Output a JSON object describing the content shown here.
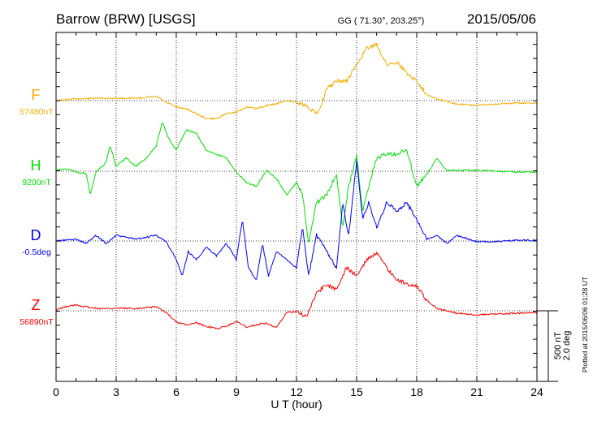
{
  "chart_data": {
    "type": "line",
    "title": "Barrow (BRW)  [USGS]",
    "subtitle": "GG ( 71.30°, 203.25°)",
    "date": "2015/05/06",
    "xlabel": "U T (hour)",
    "xlim": [
      0,
      24
    ],
    "xticks": [
      "0",
      "3",
      "6",
      "9",
      "12",
      "15",
      "18",
      "21",
      "24"
    ],
    "grid": true,
    "scale_bar": {
      "nT": "500 nT",
      "deg": "2.0 deg"
    },
    "plotted_at": "Plotted at 2015/06/06 01:28 UT",
    "series": [
      {
        "name": "F",
        "baseline_label": "57480nT",
        "baseline": 57480,
        "unit": "nT",
        "color": "#f7ac00",
        "x": [
          0,
          1,
          2,
          3,
          4,
          5,
          5.5,
          6,
          6.5,
          7,
          7.5,
          8,
          8.5,
          9,
          9.5,
          10,
          10.5,
          11,
          11.5,
          12,
          12.5,
          13,
          13.3,
          13.5,
          14,
          14.5,
          15,
          15.5,
          16,
          16.5,
          17,
          17.5,
          18,
          18.5,
          19,
          20,
          21,
          22,
          23,
          24
        ],
        "delta": [
          0,
          12,
          17,
          17,
          17,
          29,
          -12,
          -46,
          -58,
          -93,
          -128,
          -128,
          -93,
          -81,
          -46,
          -58,
          -35,
          -23,
          0,
          -12,
          -35,
          -93,
          -6,
          81,
          139,
          139,
          255,
          371,
          400,
          255,
          278,
          197,
          139,
          46,
          12,
          -23,
          -35,
          -23,
          -17,
          -17
        ]
      },
      {
        "name": "H",
        "baseline_label": "9200nT",
        "baseline": 9200,
        "unit": "nT",
        "color": "#00e000",
        "x": [
          0,
          0.5,
          1,
          1.5,
          1.7,
          2,
          2.5,
          2.7,
          3,
          3.5,
          4,
          4.5,
          5,
          5.3,
          5.6,
          6,
          6.5,
          7,
          7.5,
          8,
          8.5,
          9,
          9.5,
          10,
          10.5,
          11,
          11.5,
          12,
          12.3,
          12.6,
          13,
          13.5,
          14,
          14.3,
          14.6,
          15,
          15.3,
          15.6,
          16,
          16.5,
          17,
          17.5,
          18,
          18.5,
          19,
          19.5,
          20,
          21,
          22,
          23,
          24
        ],
        "delta": [
          6,
          17,
          -6,
          -17,
          -168,
          -6,
          64,
          180,
          35,
          93,
          35,
          93,
          180,
          354,
          238,
          151,
          296,
          267,
          151,
          122,
          93,
          -6,
          -81,
          -110,
          6,
          -52,
          -168,
          -81,
          -168,
          -516,
          -226,
          -168,
          -23,
          -400,
          -110,
          122,
          -284,
          -110,
          93,
          122,
          122,
          151,
          -110,
          -23,
          93,
          6,
          6,
          6,
          0,
          -6,
          -6
        ]
      },
      {
        "name": "D",
        "baseline_label": "-0.5deg",
        "baseline": -0.5,
        "unit": "deg",
        "color": "#0000ff",
        "x": [
          0,
          1,
          1.5,
          2,
          2.5,
          3,
          4,
          5,
          5.5,
          6,
          6.3,
          6.6,
          7,
          7.5,
          8,
          8.5,
          9,
          9.3,
          9.6,
          10,
          10.3,
          10.6,
          11,
          11.5,
          12,
          12.3,
          12.6,
          13,
          13.5,
          14,
          14.3,
          14.6,
          15,
          15.3,
          15.6,
          16,
          16.5,
          17,
          17.5,
          18,
          18.5,
          19,
          19.5,
          20,
          21,
          22,
          23,
          24
        ],
        "delta": [
          0,
          0.05,
          -0.07,
          0.16,
          -0.07,
          0.16,
          0.05,
          0.16,
          -0.02,
          -0.53,
          -1.0,
          -0.3,
          -0.53,
          -0.18,
          -0.42,
          -0.07,
          -0.53,
          0.62,
          -0.76,
          -1.11,
          -0.07,
          -1.0,
          -0.3,
          -0.53,
          -0.76,
          0.39,
          -1.0,
          0.16,
          -0.3,
          -0.76,
          1.09,
          0.16,
          2.24,
          0.62,
          1.09,
          0.39,
          1.09,
          0.85,
          1.09,
          0.62,
          0.05,
          0.16,
          -0.07,
          0.16,
          -0.02,
          -0.02,
          0.02,
          0.02
        ]
      },
      {
        "name": "Z",
        "baseline_label": "56890nT",
        "baseline": 56890,
        "unit": "nT",
        "color": "#ff0000",
        "x": [
          0,
          0.5,
          1,
          2,
          3,
          4,
          5,
          5.5,
          6,
          6.5,
          7,
          7.5,
          8,
          8.5,
          9,
          9.5,
          10,
          10.5,
          11,
          11.5,
          12,
          12.5,
          13,
          13.5,
          14,
          14.5,
          15,
          15.5,
          16,
          16.5,
          17,
          17.5,
          18,
          18.5,
          19,
          20,
          21,
          22,
          23,
          24
        ],
        "delta": [
          6,
          29,
          41,
          17,
          17,
          17,
          29,
          -12,
          -81,
          -99,
          -87,
          -110,
          -128,
          -110,
          -75,
          -116,
          -99,
          -87,
          -122,
          -12,
          -6,
          -41,
          133,
          180,
          157,
          307,
          249,
          365,
          412,
          307,
          220,
          191,
          180,
          75,
          17,
          -17,
          -29,
          -23,
          -17,
          -12
        ]
      }
    ]
  }
}
